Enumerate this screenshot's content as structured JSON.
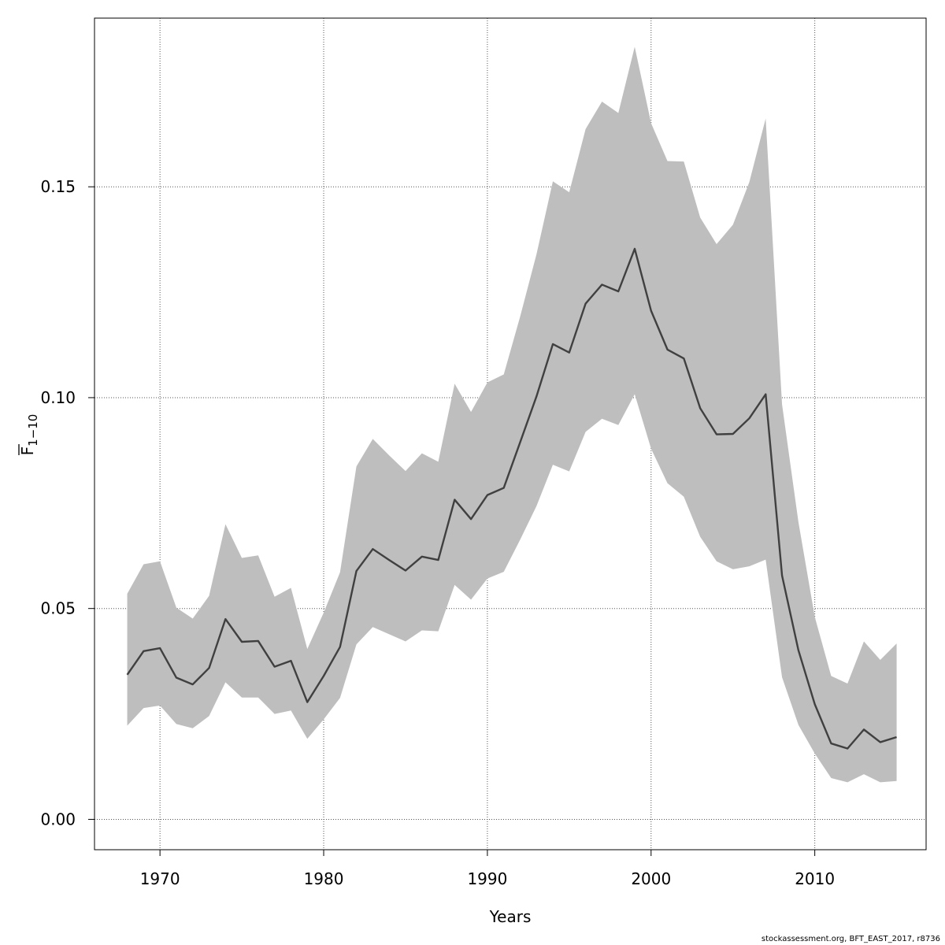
{
  "chart_data": {
    "type": "area",
    "xlabel": "Years",
    "ylabel_main": "F",
    "ylabel_sub": "1−10",
    "xlim": [
      1966,
      2016.8
    ],
    "ylim": [
      -0.0072,
      0.19
    ],
    "xticks": [
      1970,
      1980,
      1990,
      2000,
      2010
    ],
    "xtick_labels": [
      "1970",
      "1980",
      "1990",
      "2000",
      "2010"
    ],
    "yticks": [
      0.0,
      0.05,
      0.1,
      0.15
    ],
    "ytick_labels": [
      "0.00",
      "0.05",
      "0.10",
      "0.15"
    ],
    "grid": true,
    "colors": {
      "band": "#bebebe",
      "line": "#404040",
      "grid": "#555555"
    },
    "x": [
      1968,
      1969,
      1970,
      1971,
      1972,
      1973,
      1974,
      1975,
      1976,
      1977,
      1978,
      1979,
      1980,
      1981,
      1982,
      1983,
      1984,
      1985,
      1986,
      1987,
      1988,
      1989,
      1990,
      1991,
      1992,
      1993,
      1994,
      1995,
      1996,
      1997,
      1998,
      1999,
      2000,
      2001,
      2002,
      2003,
      2004,
      2005,
      2006,
      2007,
      2008,
      2009,
      2010,
      2011,
      2012,
      2013,
      2014,
      2015
    ],
    "series": [
      {
        "values": [
          0.0343,
          0.0399,
          0.0406,
          0.0336,
          0.032,
          0.0359,
          0.0475,
          0.0421,
          0.0423,
          0.0362,
          0.0376,
          0.0278,
          0.034,
          0.0409,
          0.0589,
          0.0641,
          0.0615,
          0.059,
          0.0623,
          0.0615,
          0.0758,
          0.0712,
          0.0769,
          0.0786,
          0.0894,
          0.1003,
          0.1127,
          0.1107,
          0.1223,
          0.1268,
          0.1252,
          0.1353,
          0.1206,
          0.1114,
          0.1093,
          0.0975,
          0.0913,
          0.0914,
          0.0951,
          0.1008,
          0.0578,
          0.0401,
          0.0273,
          0.018,
          0.0168,
          0.0213,
          0.0183,
          0.0195
        ]
      }
    ],
    "lower": [
      0.0222,
      0.0264,
      0.027,
      0.0226,
      0.0216,
      0.0245,
      0.0325,
      0.0289,
      0.0289,
      0.025,
      0.0258,
      0.0191,
      0.0237,
      0.0288,
      0.0415,
      0.0456,
      0.0439,
      0.0422,
      0.0448,
      0.0446,
      0.0556,
      0.0521,
      0.0571,
      0.0587,
      0.0663,
      0.0743,
      0.0841,
      0.0825,
      0.0919,
      0.095,
      0.0935,
      0.1008,
      0.0879,
      0.0797,
      0.0765,
      0.067,
      0.0612,
      0.0593,
      0.06,
      0.0616,
      0.0337,
      0.0224,
      0.0156,
      0.0098,
      0.0088,
      0.0107,
      0.0088,
      0.0091
    ],
    "upper": [
      0.0535,
      0.0605,
      0.0612,
      0.0502,
      0.0476,
      0.053,
      0.07,
      0.062,
      0.0626,
      0.0528,
      0.0549,
      0.0404,
      0.049,
      0.0586,
      0.0837,
      0.0902,
      0.0863,
      0.0826,
      0.0868,
      0.0848,
      0.1033,
      0.0966,
      0.1036,
      0.1055,
      0.1192,
      0.134,
      0.1513,
      0.1487,
      0.1637,
      0.1702,
      0.1675,
      0.1832,
      0.1651,
      0.1561,
      0.156,
      0.1427,
      0.1364,
      0.141,
      0.1511,
      0.1662,
      0.0984,
      0.0705,
      0.048,
      0.034,
      0.0322,
      0.0422,
      0.0378,
      0.0417
    ]
  },
  "credit": "stockassessment.org, BFT_EAST_2017, r8736"
}
